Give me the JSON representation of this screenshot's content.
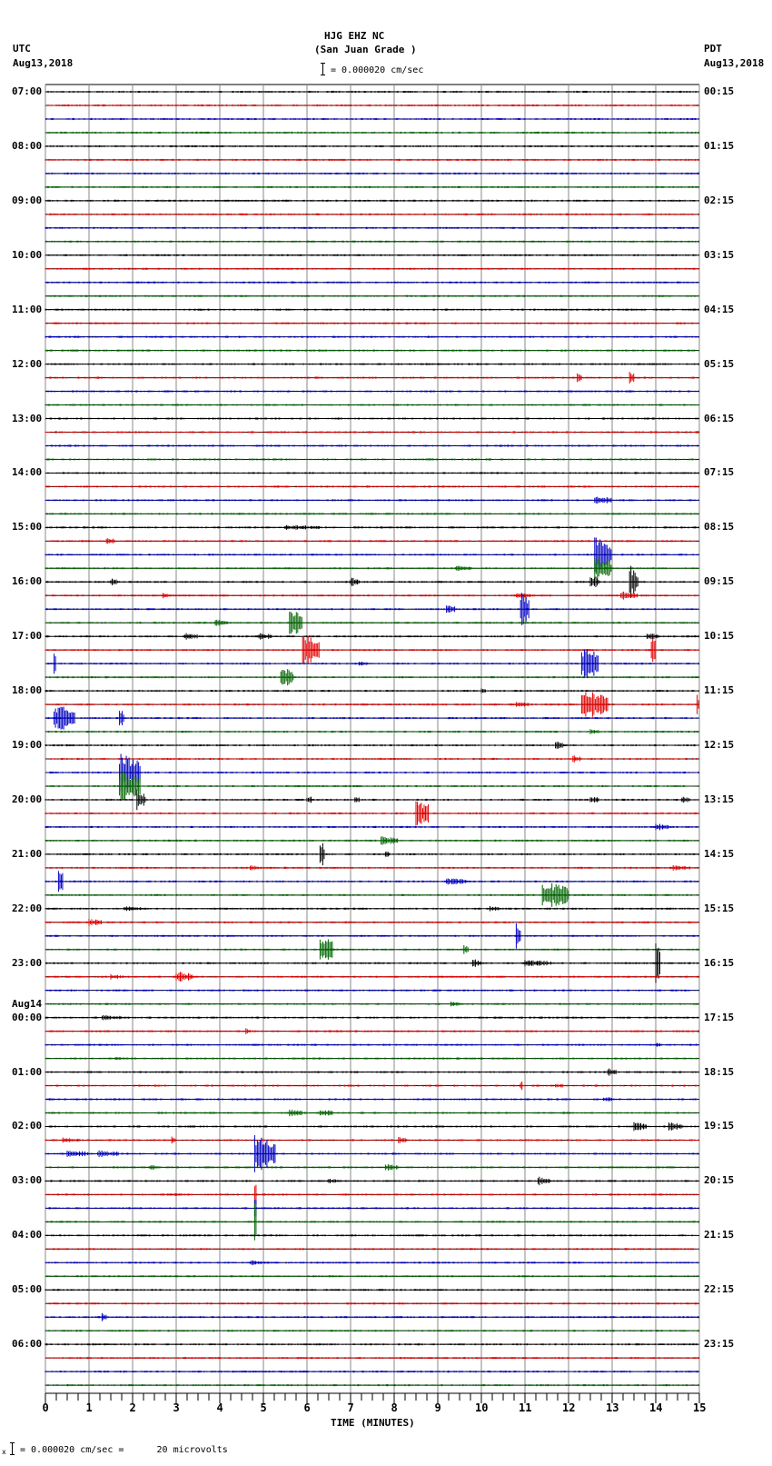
{
  "header": {
    "station": "HJG EHZ NC",
    "location": "(San Juan Grade )",
    "scale_text": "= 0.000020 cm/sec",
    "left_tz": "UTC",
    "left_date": "Aug13,2018",
    "right_tz": "PDT",
    "right_date": "Aug13,2018"
  },
  "footer": {
    "scale_text": "= 0.000020 cm/sec =      20 microvolts",
    "prefix": "x"
  },
  "chart_data": {
    "type": "line",
    "title": "HJG EHZ NC (San Juan Grade ) helicorder",
    "xlabel": "TIME (MINUTES)",
    "ylabel": "",
    "xlim": [
      0,
      15
    ],
    "x_ticks": [
      "0",
      "1",
      "2",
      "3",
      "4",
      "5",
      "6",
      "7",
      "8",
      "9",
      "10",
      "11",
      "12",
      "13",
      "14",
      "15"
    ],
    "grid": true,
    "traces_per_hour": 4,
    "trace_count": 96,
    "trace_colors": [
      "#000000",
      "#e00000",
      "#0000c0",
      "#006400"
    ],
    "left_labels": [
      "07:00",
      "08:00",
      "09:00",
      "10:00",
      "11:00",
      "12:00",
      "13:00",
      "14:00",
      "15:00",
      "16:00",
      "17:00",
      "18:00",
      "19:00",
      "20:00",
      "21:00",
      "22:00",
      "23:00",
      "00:00",
      "01:00",
      "02:00",
      "03:00",
      "04:00",
      "05:00",
      "06:00"
    ],
    "date_change_label": {
      "text": "Aug14",
      "before_hour_index": 17
    },
    "right_labels": [
      "00:15",
      "01:15",
      "02:15",
      "03:15",
      "04:15",
      "05:15",
      "06:15",
      "07:15",
      "08:15",
      "09:15",
      "10:15",
      "11:15",
      "12:15",
      "13:15",
      "14:15",
      "15:15",
      "16:15",
      "17:15",
      "18:15",
      "19:15",
      "20:15",
      "21:15",
      "22:15",
      "23:15"
    ],
    "events": [
      {
        "trace": 21,
        "minute": 12.2,
        "amp": 6,
        "dur": 0.1
      },
      {
        "trace": 21,
        "minute": 13.4,
        "amp": 8,
        "dur": 0.1
      },
      {
        "trace": 30,
        "minute": 12.6,
        "amp": 5,
        "dur": 0.4
      },
      {
        "trace": 32,
        "minute": 5.5,
        "amp": 3,
        "dur": 0.8
      },
      {
        "trace": 33,
        "minute": 1.4,
        "amp": 4,
        "dur": 0.2
      },
      {
        "trace": 34,
        "minute": 12.6,
        "amp": 20,
        "dur": 0.4
      },
      {
        "trace": 35,
        "minute": 12.6,
        "amp": 16,
        "dur": 0.4
      },
      {
        "trace": 35,
        "minute": 9.4,
        "amp": 3,
        "dur": 0.4
      },
      {
        "trace": 36,
        "minute": 1.5,
        "amp": 4,
        "dur": 0.2
      },
      {
        "trace": 36,
        "minute": 7.0,
        "amp": 5,
        "dur": 0.2
      },
      {
        "trace": 36,
        "minute": 12.5,
        "amp": 8,
        "dur": 0.2
      },
      {
        "trace": 36,
        "minute": 13.4,
        "amp": 20,
        "dur": 0.2
      },
      {
        "trace": 37,
        "minute": 2.7,
        "amp": 3,
        "dur": 0.2
      },
      {
        "trace": 37,
        "minute": 10.8,
        "amp": 4,
        "dur": 0.4
      },
      {
        "trace": 37,
        "minute": 13.2,
        "amp": 5,
        "dur": 0.4
      },
      {
        "trace": 38,
        "minute": 10.9,
        "amp": 20,
        "dur": 0.2
      },
      {
        "trace": 38,
        "minute": 9.2,
        "amp": 5,
        "dur": 0.2
      },
      {
        "trace": 39,
        "minute": 5.6,
        "amp": 16,
        "dur": 0.3
      },
      {
        "trace": 39,
        "minute": 3.9,
        "amp": 4,
        "dur": 0.3
      },
      {
        "trace": 40,
        "minute": 3.2,
        "amp": 4,
        "dur": 0.3
      },
      {
        "trace": 40,
        "minute": 4.9,
        "amp": 4,
        "dur": 0.3
      },
      {
        "trace": 40,
        "minute": 13.8,
        "amp": 4,
        "dur": 0.3
      },
      {
        "trace": 41,
        "minute": 5.9,
        "amp": 18,
        "dur": 0.4
      },
      {
        "trace": 41,
        "minute": 13.9,
        "amp": 16,
        "dur": 0.1
      },
      {
        "trace": 42,
        "minute": 12.3,
        "amp": 20,
        "dur": 0.4
      },
      {
        "trace": 42,
        "minute": 7.2,
        "amp": 3,
        "dur": 0.2
      },
      {
        "trace": 42,
        "minute": 0.2,
        "amp": 12,
        "dur": 0.05
      },
      {
        "trace": 43,
        "minute": 5.4,
        "amp": 12,
        "dur": 0.3
      },
      {
        "trace": 44,
        "minute": 10.0,
        "amp": 3,
        "dur": 0.1
      },
      {
        "trace": 45,
        "minute": 12.3,
        "amp": 18,
        "dur": 0.6
      },
      {
        "trace": 45,
        "minute": 10.8,
        "amp": 4,
        "dur": 0.3
      },
      {
        "trace": 45,
        "minute": 14.95,
        "amp": 12,
        "dur": 0.05
      },
      {
        "trace": 46,
        "minute": 0.2,
        "amp": 16,
        "dur": 0.5
      },
      {
        "trace": 46,
        "minute": 1.7,
        "amp": 14,
        "dur": 0.1
      },
      {
        "trace": 47,
        "minute": 12.5,
        "amp": 3,
        "dur": 0.2
      },
      {
        "trace": 48,
        "minute": 11.7,
        "amp": 5,
        "dur": 0.2
      },
      {
        "trace": 49,
        "minute": 12.1,
        "amp": 4,
        "dur": 0.2
      },
      {
        "trace": 50,
        "minute": 1.7,
        "amp": 22,
        "dur": 0.5
      },
      {
        "trace": 51,
        "minute": 1.7,
        "amp": 18,
        "dur": 0.5
      },
      {
        "trace": 52,
        "minute": 2.1,
        "amp": 12,
        "dur": 0.2
      },
      {
        "trace": 52,
        "minute": 6.0,
        "amp": 5,
        "dur": 0.1
      },
      {
        "trace": 52,
        "minute": 7.1,
        "amp": 4,
        "dur": 0.1
      },
      {
        "trace": 52,
        "minute": 12.5,
        "amp": 4,
        "dur": 0.2
      },
      {
        "trace": 52,
        "minute": 14.6,
        "amp": 4,
        "dur": 0.2
      },
      {
        "trace": 53,
        "minute": 8.5,
        "amp": 18,
        "dur": 0.3
      },
      {
        "trace": 54,
        "minute": 14.0,
        "amp": 4,
        "dur": 0.3
      },
      {
        "trace": 55,
        "minute": 7.7,
        "amp": 5,
        "dur": 0.4
      },
      {
        "trace": 56,
        "minute": 6.3,
        "amp": 16,
        "dur": 0.1
      },
      {
        "trace": 56,
        "minute": 7.8,
        "amp": 5,
        "dur": 0.1
      },
      {
        "trace": 57,
        "minute": 4.7,
        "amp": 3,
        "dur": 0.2
      },
      {
        "trace": 57,
        "minute": 14.4,
        "amp": 3,
        "dur": 0.4
      },
      {
        "trace": 58,
        "minute": 0.3,
        "amp": 20,
        "dur": 0.1
      },
      {
        "trace": 58,
        "minute": 9.2,
        "amp": 4,
        "dur": 0.5
      },
      {
        "trace": 59,
        "minute": 11.4,
        "amp": 16,
        "dur": 0.6
      },
      {
        "trace": 60,
        "minute": 1.8,
        "amp": 3,
        "dur": 0.5
      },
      {
        "trace": 60,
        "minute": 10.2,
        "amp": 3,
        "dur": 0.2
      },
      {
        "trace": 61,
        "minute": 1.0,
        "amp": 4,
        "dur": 0.3
      },
      {
        "trace": 62,
        "minute": 10.8,
        "amp": 18,
        "dur": 0.1
      },
      {
        "trace": 63,
        "minute": 6.3,
        "amp": 18,
        "dur": 0.3
      },
      {
        "trace": 63,
        "minute": 9.6,
        "amp": 6,
        "dur": 0.1
      },
      {
        "trace": 64,
        "minute": 9.8,
        "amp": 5,
        "dur": 0.2
      },
      {
        "trace": 64,
        "minute": 11.0,
        "amp": 4,
        "dur": 0.6
      },
      {
        "trace": 64,
        "minute": 14.0,
        "amp": 22,
        "dur": 0.1
      },
      {
        "trace": 65,
        "minute": 3.0,
        "amp": 6,
        "dur": 0.4
      },
      {
        "trace": 65,
        "minute": 1.5,
        "amp": 3,
        "dur": 0.3
      },
      {
        "trace": 67,
        "minute": 9.3,
        "amp": 3,
        "dur": 0.2
      },
      {
        "trace": 68,
        "minute": 1.3,
        "amp": 3,
        "dur": 0.5
      },
      {
        "trace": 69,
        "minute": 4.6,
        "amp": 4,
        "dur": 0.1
      },
      {
        "trace": 70,
        "minute": 14.0,
        "amp": 3,
        "dur": 0.1
      },
      {
        "trace": 71,
        "minute": 1.6,
        "amp": 2,
        "dur": 0.3
      },
      {
        "trace": 72,
        "minute": 12.9,
        "amp": 5,
        "dur": 0.2
      },
      {
        "trace": 73,
        "minute": 10.9,
        "amp": 6,
        "dur": 0.05
      },
      {
        "trace": 73,
        "minute": 11.7,
        "amp": 3,
        "dur": 0.2
      },
      {
        "trace": 74,
        "minute": 12.8,
        "amp": 3,
        "dur": 0.2
      },
      {
        "trace": 75,
        "minute": 5.6,
        "amp": 4,
        "dur": 0.3
      },
      {
        "trace": 75,
        "minute": 6.3,
        "amp": 4,
        "dur": 0.3
      },
      {
        "trace": 76,
        "minute": 13.5,
        "amp": 5,
        "dur": 0.3
      },
      {
        "trace": 76,
        "minute": 14.3,
        "amp": 5,
        "dur": 0.3
      },
      {
        "trace": 77,
        "minute": 0.4,
        "amp": 3,
        "dur": 0.4
      },
      {
        "trace": 77,
        "minute": 2.9,
        "amp": 4,
        "dur": 0.1
      },
      {
        "trace": 77,
        "minute": 8.1,
        "amp": 4,
        "dur": 0.2
      },
      {
        "trace": 78,
        "minute": 0.5,
        "amp": 4,
        "dur": 0.5
      },
      {
        "trace": 78,
        "minute": 1.2,
        "amp": 4,
        "dur": 0.5
      },
      {
        "trace": 78,
        "minute": 4.8,
        "amp": 22,
        "dur": 0.5
      },
      {
        "trace": 79,
        "minute": 2.4,
        "amp": 3,
        "dur": 0.2
      },
      {
        "trace": 79,
        "minute": 7.8,
        "amp": 4,
        "dur": 0.3
      },
      {
        "trace": 80,
        "minute": 6.5,
        "amp": 3,
        "dur": 0.3
      },
      {
        "trace": 80,
        "minute": 11.3,
        "amp": 5,
        "dur": 0.3
      },
      {
        "trace": 81,
        "minute": 2.8,
        "amp": 2,
        "dur": 0.4
      },
      {
        "trace": 81,
        "minute": 4.8,
        "amp": 14,
        "dur": 0.05
      },
      {
        "trace": 82,
        "minute": 4.8,
        "amp": 22,
        "dur": 0.05
      },
      {
        "trace": 83,
        "minute": 4.8,
        "amp": 22,
        "dur": 0.05
      },
      {
        "trace": 86,
        "minute": 4.7,
        "amp": 3,
        "dur": 0.3
      },
      {
        "trace": 90,
        "minute": 1.3,
        "amp": 5,
        "dur": 0.1
      }
    ]
  }
}
